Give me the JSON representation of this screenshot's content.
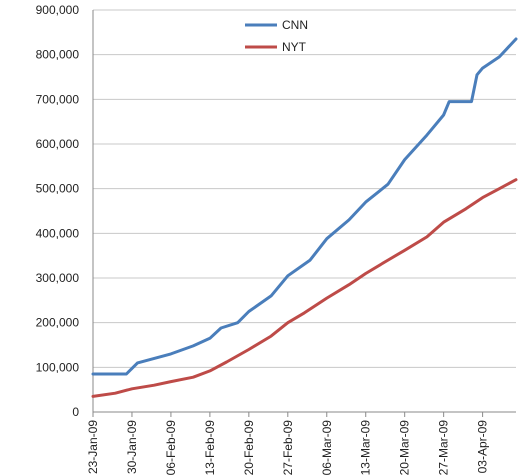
{
  "chart_data": {
    "type": "line",
    "title": "",
    "xlabel": "",
    "ylabel": "",
    "ylim": [
      0,
      900000
    ],
    "yticks": [
      0,
      100000,
      200000,
      300000,
      400000,
      500000,
      600000,
      700000,
      800000,
      900000
    ],
    "ytick_labels": [
      "0",
      "100,000",
      "200,000",
      "300,000",
      "400,000",
      "500,000",
      "600,000",
      "700,000",
      "800,000",
      "900,000"
    ],
    "xlim": [
      "2009-01-23",
      "2009-04-09"
    ],
    "xticks": [
      "2009-01-23",
      "2009-01-30",
      "2009-02-06",
      "2009-02-13",
      "2009-02-20",
      "2009-02-27",
      "2009-03-06",
      "2009-03-13",
      "2009-03-20",
      "2009-03-27",
      "2009-04-03"
    ],
    "xtick_labels": [
      "23-Jan-09",
      "30-Jan-09",
      "06-Feb-09",
      "13-Feb-09",
      "20-Feb-09",
      "27-Feb-09",
      "06-Mar-09",
      "13-Mar-09",
      "20-Mar-09",
      "27-Mar-09",
      "03-Apr-09"
    ],
    "grid": "horizontal",
    "legend": "top-center",
    "series": [
      {
        "name": "CNN",
        "color": "#4a7ebb",
        "points": [
          [
            "2009-01-23",
            85000
          ],
          [
            "2009-01-29",
            85000
          ],
          [
            "2009-01-31",
            110000
          ],
          [
            "2009-02-03",
            120000
          ],
          [
            "2009-02-06",
            130000
          ],
          [
            "2009-02-10",
            148000
          ],
          [
            "2009-02-13",
            165000
          ],
          [
            "2009-02-15",
            188000
          ],
          [
            "2009-02-18",
            200000
          ],
          [
            "2009-02-20",
            225000
          ],
          [
            "2009-02-24",
            260000
          ],
          [
            "2009-02-27",
            305000
          ],
          [
            "2009-03-03",
            340000
          ],
          [
            "2009-03-06",
            388000
          ],
          [
            "2009-03-10",
            430000
          ],
          [
            "2009-03-13",
            470000
          ],
          [
            "2009-03-17",
            510000
          ],
          [
            "2009-03-20",
            565000
          ],
          [
            "2009-03-24",
            620000
          ],
          [
            "2009-03-27",
            665000
          ],
          [
            "2009-03-28",
            695000
          ],
          [
            "2009-04-01",
            695000
          ],
          [
            "2009-04-02",
            755000
          ],
          [
            "2009-04-03",
            770000
          ],
          [
            "2009-04-06",
            795000
          ],
          [
            "2009-04-09",
            835000
          ]
        ]
      },
      {
        "name": "NYT",
        "color": "#be4b48",
        "points": [
          [
            "2009-01-23",
            35000
          ],
          [
            "2009-01-27",
            42000
          ],
          [
            "2009-01-30",
            52000
          ],
          [
            "2009-02-03",
            60000
          ],
          [
            "2009-02-06",
            68000
          ],
          [
            "2009-02-10",
            78000
          ],
          [
            "2009-02-13",
            92000
          ],
          [
            "2009-02-16",
            112000
          ],
          [
            "2009-02-20",
            140000
          ],
          [
            "2009-02-24",
            170000
          ],
          [
            "2009-02-27",
            200000
          ],
          [
            "2009-03-02",
            222000
          ],
          [
            "2009-03-06",
            255000
          ],
          [
            "2009-03-10",
            285000
          ],
          [
            "2009-03-13",
            310000
          ],
          [
            "2009-03-17",
            340000
          ],
          [
            "2009-03-20",
            362000
          ],
          [
            "2009-03-24",
            392000
          ],
          [
            "2009-03-27",
            425000
          ],
          [
            "2009-03-31",
            455000
          ],
          [
            "2009-04-03",
            480000
          ],
          [
            "2009-04-06",
            500000
          ],
          [
            "2009-04-09",
            520000
          ]
        ]
      }
    ]
  }
}
